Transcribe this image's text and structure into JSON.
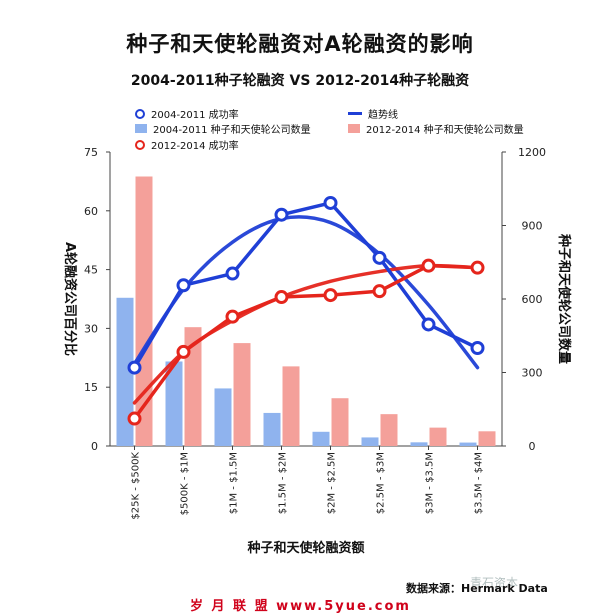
{
  "title": "种子和天使轮融资对A轮融资的影响",
  "subtitle": "2004-2011种子轮融资  VS  2012-2014种子轮融资",
  "colors": {
    "blue": "#1f3fd6",
    "blue_bar": "#8fb3ee",
    "red": "#e5251c",
    "red_bar": "#f4a09a"
  },
  "legend": {
    "blue_line": "2004-2011 成功率",
    "blue_bar": "2004-2011 种子和天使轮公司数量",
    "red_line": "2012-2014 成功率",
    "trend": "趋势线",
    "red_bar": "2012-2014 种子和天使轮公司数量"
  },
  "source": "数据来源：Hermark Data",
  "footer": "岁 月 联 盟 www.5yue.com",
  "watermark": "青石资本",
  "chart_data": {
    "type": "bar",
    "categories": [
      "$25K - $500K",
      "$500K - $1M",
      "$1M - $1.5M",
      "$1.5M - $2M",
      "$2M - $2.5M",
      "$2.5M - $3M",
      "$3M - $3.5M",
      "$3.5M - $4M"
    ],
    "xlabel": "种子和天使轮融资额",
    "ylabel_left": "A轮融资公司百分比",
    "ylabel_right": "种子和天使轮公司数量",
    "ylim_left": [
      0,
      75
    ],
    "yticks_left": [
      0,
      15,
      30,
      45,
      60,
      75
    ],
    "ylim_right": [
      0,
      1200
    ],
    "yticks_right": [
      0,
      300,
      600,
      900,
      1200
    ],
    "bar_series": [
      {
        "name": "2004-2011 种子和天使轮公司数量",
        "color": "#8fb3ee",
        "values": [
          605,
          345,
          235,
          135,
          58,
          35,
          15,
          14
        ]
      },
      {
        "name": "2012-2014 种子和天使轮公司数量",
        "color": "#f4a09a",
        "values": [
          1100,
          485,
          420,
          325,
          195,
          130,
          75,
          60
        ]
      }
    ],
    "line_series": [
      {
        "name": "2004-2011 成功率",
        "color": "#1f3fd6",
        "values": [
          20,
          41,
          44,
          59,
          62,
          48,
          31,
          25
        ]
      },
      {
        "name": "2012-2014 成功率",
        "color": "#e5251c",
        "values": [
          7,
          24,
          33,
          38,
          38.5,
          39.5,
          46,
          45.5
        ]
      }
    ],
    "trend_series": [
      {
        "color": "#1f3fd6",
        "values": [
          21,
          40,
          52,
          58,
          57,
          49,
          36,
          20
        ]
      },
      {
        "color": "#e5251c",
        "values": [
          11,
          24,
          32,
          38,
          42,
          44.5,
          46,
          45.5
        ]
      }
    ],
    "grid": false
  }
}
